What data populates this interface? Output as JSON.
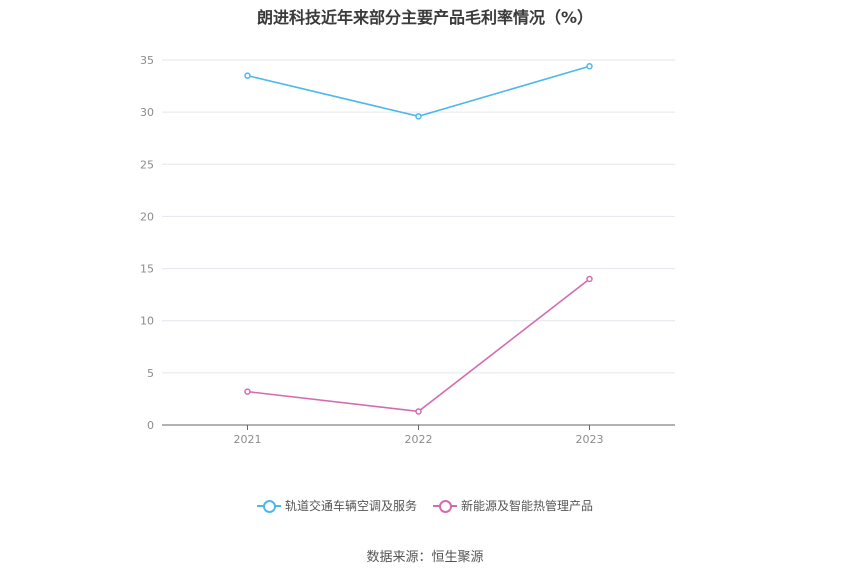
{
  "title": "朗进科技近年来部分主要产品毛利率情况（%）",
  "source": "数据来源：恒生聚源",
  "chart_data": {
    "type": "line",
    "x": [
      "2021",
      "2022",
      "2023"
    ],
    "ylim": [
      0,
      35
    ],
    "yticks": [
      0,
      5,
      10,
      15,
      20,
      25,
      30,
      35
    ],
    "grid": true,
    "legend_position": "bottom",
    "series": [
      {
        "name": "轨道交通车辆空调及服务",
        "color": "#4cb8ec",
        "values": [
          33.5,
          29.6,
          34.4
        ]
      },
      {
        "name": "新能源及智能热管理产品",
        "color": "#d46bb0",
        "values": [
          3.2,
          1.3,
          14.0
        ]
      }
    ]
  }
}
